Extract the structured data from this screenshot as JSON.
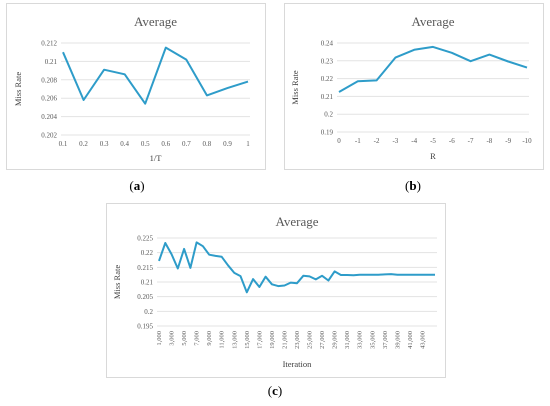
{
  "captions": {
    "a": "a",
    "b": "b",
    "c": "c"
  },
  "chart_data": [
    {
      "type": "line",
      "title": "Average",
      "xlabel": "1/T",
      "ylabel": "Miss Rate",
      "categories": [
        "0.1",
        "0.2",
        "0.3",
        "0.4",
        "0.5",
        "0.6",
        "0.7",
        "0.8",
        "0.9",
        "1"
      ],
      "series": [
        {
          "values": [
            0.211,
            0.2058,
            0.2091,
            0.2086,
            0.2054,
            0.2115,
            0.2102,
            0.2063,
            0.2071,
            0.2078
          ]
        }
      ],
      "ylim": [
        0.202,
        0.212
      ],
      "yticks": [
        "0.202",
        "0.204",
        "0.206",
        "0.208",
        "0.21",
        "0.212"
      ],
      "grid": true,
      "color": "#2e9cc9"
    },
    {
      "type": "line",
      "title": "Average",
      "xlabel": "R",
      "ylabel": "Miss Rate",
      "categories": [
        "0",
        "-1",
        "-2",
        "-3",
        "-4",
        "-5",
        "-6",
        "-7",
        "-8",
        "-9",
        "-10"
      ],
      "series": [
        {
          "values": [
            0.2125,
            0.2185,
            0.219,
            0.2318,
            0.2362,
            0.2378,
            0.2345,
            0.2298,
            0.2335,
            0.2296,
            0.2262
          ]
        }
      ],
      "ylim": [
        0.19,
        0.24
      ],
      "yticks": [
        "0.19",
        "0.2",
        "0.21",
        "0.22",
        "0.23",
        "0.24"
      ],
      "grid": true,
      "color": "#2e9cc9"
    },
    {
      "type": "line",
      "title": "Average",
      "xlabel": "Iteration",
      "ylabel": "Miss Rate",
      "x": [
        1000,
        2000,
        3000,
        4000,
        5000,
        6000,
        7000,
        8000,
        9000,
        10000,
        11000,
        12000,
        13000,
        14000,
        15000,
        16000,
        17000,
        18000,
        19000,
        20000,
        21000,
        22000,
        23000,
        24000,
        25000,
        26000,
        27000,
        28000,
        29000,
        30000,
        31000,
        32000,
        33000,
        34000,
        35000,
        36000,
        37000,
        38000,
        39000,
        40000,
        41000,
        42000,
        43000,
        44000,
        45000
      ],
      "series": [
        {
          "values": [
            0.2172,
            0.2233,
            0.2195,
            0.2146,
            0.2213,
            0.2148,
            0.2235,
            0.2222,
            0.2193,
            0.2189,
            0.2186,
            0.2157,
            0.2131,
            0.212,
            0.2065,
            0.211,
            0.2083,
            0.2118,
            0.2092,
            0.2086,
            0.2088,
            0.2098,
            0.2096,
            0.2121,
            0.2119,
            0.2109,
            0.2121,
            0.2105,
            0.2136,
            0.2124,
            0.2124,
            0.2123,
            0.2125,
            0.2125,
            0.2125,
            0.2125,
            0.2126,
            0.2127,
            0.2125,
            0.2125,
            0.2125,
            0.2125,
            0.2125,
            0.2125,
            0.2125
          ]
        }
      ],
      "xticks": [
        "1,000",
        "3,000",
        "5,000",
        "7,000",
        "9,000",
        "11,000",
        "13,000",
        "15,000",
        "17,000",
        "19,000",
        "21,000",
        "23,000",
        "25,000",
        "27,000",
        "29,000",
        "31,000",
        "33,000",
        "35,000",
        "37,000",
        "39,000",
        "41,000",
        "43,000"
      ],
      "ylim": [
        0.195,
        0.225
      ],
      "yticks": [
        "0.195",
        "0.2",
        "0.205",
        "0.21",
        "0.215",
        "0.22",
        "0.225"
      ],
      "grid": true,
      "color": "#2e9cc9"
    }
  ]
}
